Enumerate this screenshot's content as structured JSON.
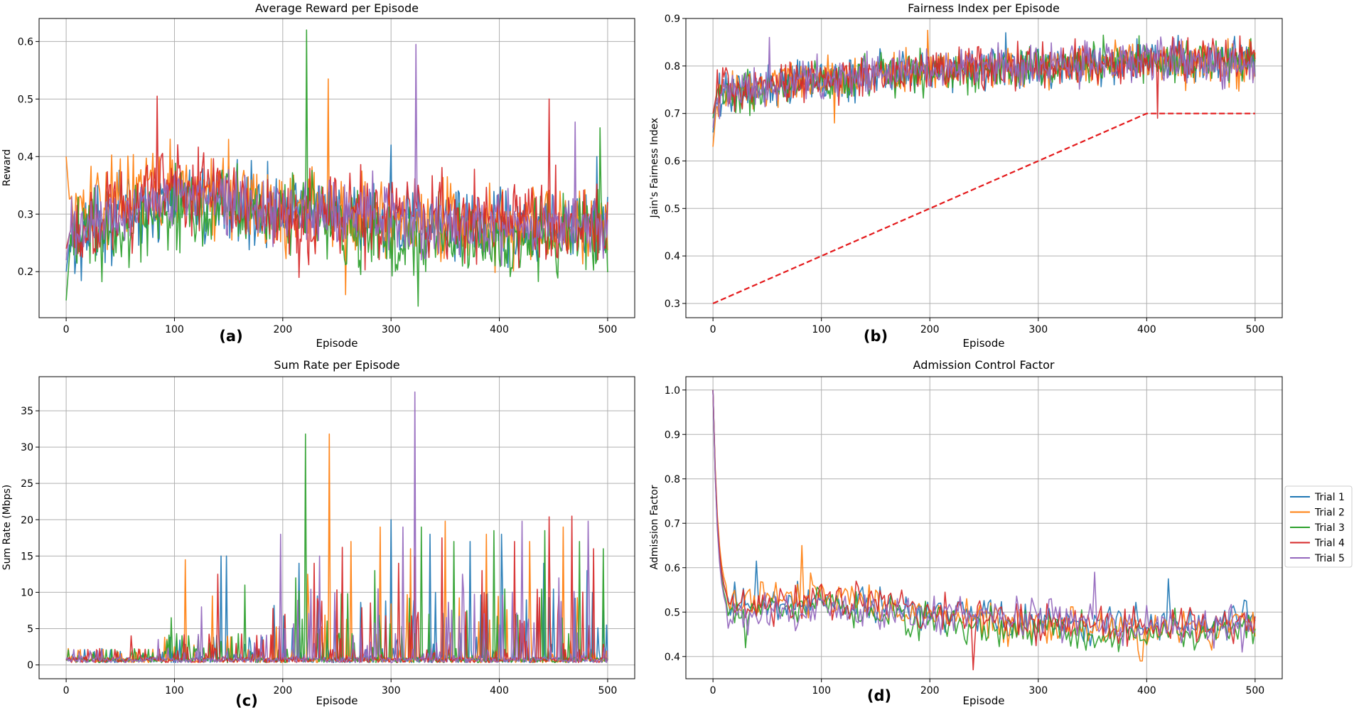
{
  "colors": {
    "trial_1": "#1f77b4",
    "trial_2": "#ff7f0e",
    "trial_3": "#2ca02c",
    "trial_4": "#d62728",
    "trial_5": "#9467bd",
    "target": "#e41a1c"
  },
  "legend": [
    "Trial 1",
    "Trial 2",
    "Trial 3",
    "Trial 4",
    "Trial 5"
  ],
  "chart_data": [
    {
      "id": "a",
      "panel_label": "(a)",
      "type": "line",
      "title": "Average Reward per Episode",
      "xlabel": "Episode",
      "ylabel": "Reward",
      "xlim": [
        -25,
        525
      ],
      "ylim": [
        0.12,
        0.64
      ],
      "xticks": [
        "0",
        "100",
        "200",
        "300",
        "400",
        "500"
      ],
      "xtick_values": [
        0,
        100,
        200,
        300,
        400,
        500
      ],
      "yticks": [
        "0.2",
        "0.3",
        "0.4",
        "0.5",
        "0.6"
      ],
      "ytick_values": [
        0.2,
        0.3,
        0.4,
        0.5,
        0.6
      ],
      "grid": true,
      "x": [
        0,
        100,
        200,
        300,
        400,
        500
      ],
      "series": [
        {
          "name": "Trial 1",
          "trend": [
            0.26,
            0.33,
            0.31,
            0.29,
            0.28,
            0.28
          ],
          "noise": 0.045,
          "start": 0.2,
          "spikes": [
            [
              300,
              0.42
            ],
            [
              490,
              0.4
            ]
          ]
        },
        {
          "name": "Trial 2",
          "trend": [
            0.3,
            0.35,
            0.31,
            0.29,
            0.28,
            0.28
          ],
          "noise": 0.05,
          "start": 0.4,
          "spikes": [
            [
              242,
              0.535
            ],
            [
              258,
              0.16
            ],
            [
              150,
              0.43
            ]
          ]
        },
        {
          "name": "Trial 3",
          "trend": [
            0.25,
            0.31,
            0.3,
            0.26,
            0.25,
            0.27
          ],
          "noise": 0.05,
          "start": 0.15,
          "spikes": [
            [
              222,
              0.62
            ],
            [
              325,
              0.14
            ],
            [
              493,
              0.45
            ]
          ]
        },
        {
          "name": "Trial 4",
          "trend": [
            0.27,
            0.35,
            0.3,
            0.29,
            0.29,
            0.28
          ],
          "noise": 0.05,
          "start": 0.24,
          "spikes": [
            [
              84,
              0.505
            ],
            [
              446,
              0.5
            ],
            [
              215,
              0.19
            ]
          ]
        },
        {
          "name": "Trial 5",
          "trend": [
            0.28,
            0.33,
            0.31,
            0.29,
            0.28,
            0.28
          ],
          "noise": 0.04,
          "start": 0.22,
          "spikes": [
            [
              323,
              0.595
            ],
            [
              470,
              0.46
            ]
          ]
        }
      ]
    },
    {
      "id": "b",
      "panel_label": "(b)",
      "type": "line",
      "title": "Fairness Index per Episode",
      "xlabel": "Episode",
      "ylabel": "Jain's Fairness Index",
      "xlim": [
        -25,
        525
      ],
      "ylim": [
        0.27,
        0.9
      ],
      "xticks": [
        "0",
        "100",
        "200",
        "300",
        "400",
        "500"
      ],
      "xtick_values": [
        0,
        100,
        200,
        300,
        400,
        500
      ],
      "yticks": [
        "0.3",
        "0.4",
        "0.5",
        "0.6",
        "0.7",
        "0.8",
        "0.9"
      ],
      "ytick_values": [
        0.3,
        0.4,
        0.5,
        0.6,
        0.7,
        0.8,
        0.9
      ],
      "grid": true,
      "x": [
        0,
        100,
        200,
        300,
        400,
        500
      ],
      "series": [
        {
          "name": "Trial 1",
          "trend": [
            0.74,
            0.77,
            0.79,
            0.8,
            0.81,
            0.81
          ],
          "noise": 0.03,
          "start": 0.66,
          "spikes": [
            [
              270,
              0.87
            ]
          ]
        },
        {
          "name": "Trial 2",
          "trend": [
            0.74,
            0.77,
            0.79,
            0.8,
            0.81,
            0.8
          ],
          "noise": 0.03,
          "start": 0.63,
          "spikes": [
            [
              198,
              0.875
            ],
            [
              112,
              0.68
            ]
          ]
        },
        {
          "name": "Trial 3",
          "trend": [
            0.74,
            0.77,
            0.79,
            0.8,
            0.81,
            0.81
          ],
          "noise": 0.03,
          "start": 0.69,
          "spikes": [
            [
              360,
              0.865
            ]
          ]
        },
        {
          "name": "Trial 4",
          "trend": [
            0.75,
            0.77,
            0.79,
            0.8,
            0.81,
            0.82
          ],
          "noise": 0.03,
          "start": 0.7,
          "spikes": [
            [
              410,
              0.69
            ]
          ]
        },
        {
          "name": "Trial 5",
          "trend": [
            0.74,
            0.77,
            0.79,
            0.8,
            0.81,
            0.8
          ],
          "noise": 0.03,
          "start": 0.67,
          "spikes": [
            [
              52,
              0.86
            ]
          ]
        }
      ],
      "reference": {
        "x": [
          0,
          400,
          500
        ],
        "y": [
          0.3,
          0.7,
          0.7
        ],
        "style": "dashed"
      }
    },
    {
      "id": "c",
      "panel_label": "(c)",
      "type": "line",
      "title": "Sum Rate per Episode",
      "xlabel": "Episode",
      "ylabel": "Sum Rate (Mbps)",
      "xlim": [
        -25,
        525
      ],
      "ylim": [
        -1.9,
        39.7
      ],
      "xticks": [
        "0",
        "100",
        "200",
        "300",
        "400",
        "500"
      ],
      "xtick_values": [
        0,
        100,
        200,
        300,
        400,
        500
      ],
      "yticks": [
        "0",
        "5",
        "10",
        "15",
        "20",
        "25",
        "30",
        "35"
      ],
      "ytick_values": [
        0,
        5,
        10,
        15,
        20,
        25,
        30,
        35
      ],
      "grid": true,
      "x": [
        0,
        100,
        200,
        300,
        400,
        500
      ],
      "series": [
        {
          "name": "Trial 1",
          "base": 0.8,
          "peaks": [
            [
              143,
              15
            ],
            [
              148,
              15
            ],
            [
              215,
              14
            ],
            [
              300,
              20
            ],
            [
              336,
              18
            ],
            [
              373,
              17
            ],
            [
              402,
              18
            ],
            [
              441,
              14
            ],
            [
              481,
              13
            ],
            [
              499,
              5.5
            ]
          ]
        },
        {
          "name": "Trial 2",
          "base": 0.8,
          "peaks": [
            [
              110,
              14.5
            ],
            [
              135,
              9.5
            ],
            [
              223,
              12.5
            ],
            [
              243,
              31.8
            ],
            [
              263,
              17
            ],
            [
              290,
              19
            ],
            [
              318,
              16
            ],
            [
              350,
              19.8
            ],
            [
              388,
              18
            ],
            [
              428,
              17
            ],
            [
              459,
              19
            ]
          ]
        },
        {
          "name": "Trial 3",
          "base": 0.8,
          "peaks": [
            [
              97,
              6.5
            ],
            [
              165,
              11
            ],
            [
              212,
              12
            ],
            [
              221,
              31.8
            ],
            [
              285,
              13
            ],
            [
              328,
              19
            ],
            [
              358,
              17
            ],
            [
              395,
              18.5
            ],
            [
              442,
              18.5
            ],
            [
              474,
              17
            ],
            [
              496,
              16
            ]
          ]
        },
        {
          "name": "Trial 4",
          "base": 0.8,
          "peaks": [
            [
              60,
              4
            ],
            [
              140,
              12.5
            ],
            [
              229,
              14
            ],
            [
              255,
              16.2
            ],
            [
              307,
              14
            ],
            [
              322,
              15
            ],
            [
              347,
              17.5
            ],
            [
              384,
              13
            ],
            [
              414,
              17
            ],
            [
              446,
              20.4
            ],
            [
              467,
              20.5
            ],
            [
              487,
              16
            ]
          ]
        },
        {
          "name": "Trial 5",
          "base": 0.8,
          "peaks": [
            [
              85,
              3.5
            ],
            [
              125,
              8
            ],
            [
              198,
              18
            ],
            [
              234,
              15
            ],
            [
              311,
              19
            ],
            [
              322,
              37.6
            ],
            [
              366,
              12.5
            ],
            [
              421,
              19.8
            ],
            [
              455,
              12
            ],
            [
              482,
              19.8
            ]
          ]
        }
      ]
    },
    {
      "id": "d",
      "panel_label": "(d)",
      "type": "line",
      "title": "Admission Control Factor",
      "xlabel": "Episode",
      "ylabel": "Admission Factor",
      "xlim": [
        -25,
        525
      ],
      "ylim": [
        0.35,
        1.03
      ],
      "xticks": [
        "0",
        "100",
        "200",
        "300",
        "400",
        "500"
      ],
      "xtick_values": [
        0,
        100,
        200,
        300,
        400,
        500
      ],
      "yticks": [
        "0.4",
        "0.5",
        "0.6",
        "0.7",
        "0.8",
        "0.9",
        "1.0"
      ],
      "ytick_values": [
        0.4,
        0.5,
        0.6,
        0.7,
        0.8,
        0.9,
        1.0
      ],
      "grid": true,
      "x": [
        0,
        100,
        200,
        300,
        400,
        500
      ],
      "series": [
        {
          "name": "Trial 1",
          "trend": [
            0.51,
            0.53,
            0.5,
            0.48,
            0.47,
            0.48
          ],
          "noise": 0.03,
          "start": 1.0,
          "spikes": [
            [
              420,
              0.575
            ],
            [
              40,
              0.615
            ]
          ]
        },
        {
          "name": "Trial 2",
          "trend": [
            0.53,
            0.54,
            0.49,
            0.47,
            0.46,
            0.47
          ],
          "noise": 0.03,
          "start": 1.0,
          "spikes": [
            [
              82,
              0.65
            ],
            [
              395,
              0.39
            ]
          ]
        },
        {
          "name": "Trial 3",
          "trend": [
            0.49,
            0.52,
            0.48,
            0.46,
            0.45,
            0.47
          ],
          "noise": 0.03,
          "start": 1.0,
          "spikes": [
            [
              30,
              0.42
            ]
          ]
        },
        {
          "name": "Trial 4",
          "trend": [
            0.51,
            0.53,
            0.5,
            0.48,
            0.46,
            0.48
          ],
          "noise": 0.03,
          "start": 1.0,
          "spikes": [
            [
              240,
              0.37
            ]
          ]
        },
        {
          "name": "Trial 5",
          "trend": [
            0.48,
            0.51,
            0.49,
            0.49,
            0.47,
            0.47
          ],
          "noise": 0.03,
          "start": 1.0,
          "spikes": [
            [
              352,
              0.59
            ]
          ]
        }
      ]
    }
  ]
}
